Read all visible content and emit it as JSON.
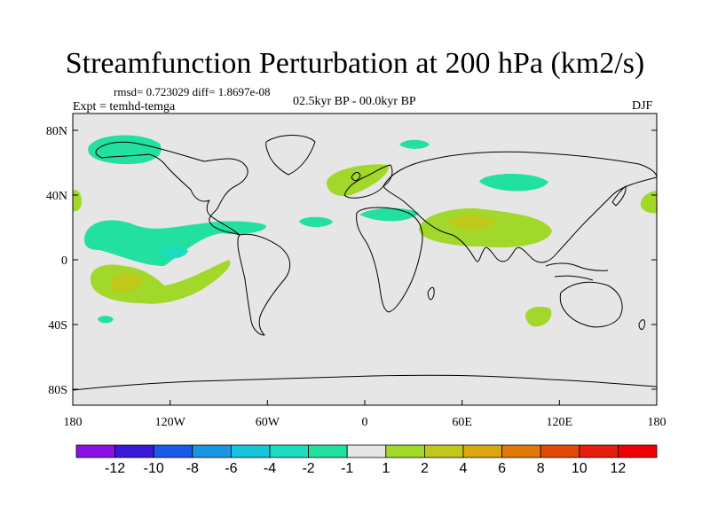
{
  "title": "Streamfunction Perturbation at 200 hPa (km2/s)",
  "stats": "rmsd= 0.723029 diff= 1.8697e-08",
  "experiment": "Expt = temhd-temga",
  "period": "02.5kyr BP - 00.0kyr BP",
  "season": "DJF",
  "colors": {
    "ocean_land_neutral": "#e6e6e6",
    "coast": "#000000",
    "light_neg": "#22e0a0",
    "light_pos": "#a2d82a"
  },
  "map": {
    "lat_ticks": [
      "80N",
      "40N",
      "0",
      "40S",
      "80S"
    ],
    "lon_ticks": [
      "180",
      "120W",
      "60W",
      "0",
      "60E",
      "120E",
      "180"
    ]
  },
  "colorbar": {
    "labels": [
      "-12",
      "-10",
      "-8",
      "-6",
      "-4",
      "-2",
      "-1",
      "1",
      "2",
      "4",
      "6",
      "8",
      "10",
      "12"
    ],
    "colors": [
      "#8a12e6",
      "#3a18d8",
      "#1a5ae8",
      "#1a96e0",
      "#16c4dc",
      "#1edcc0",
      "#22e0a0",
      "#e6e6e6",
      "#a2d82a",
      "#c0c81a",
      "#dca810",
      "#e07a08",
      "#e04a06",
      "#e61c0c",
      "#f00000"
    ]
  }
}
